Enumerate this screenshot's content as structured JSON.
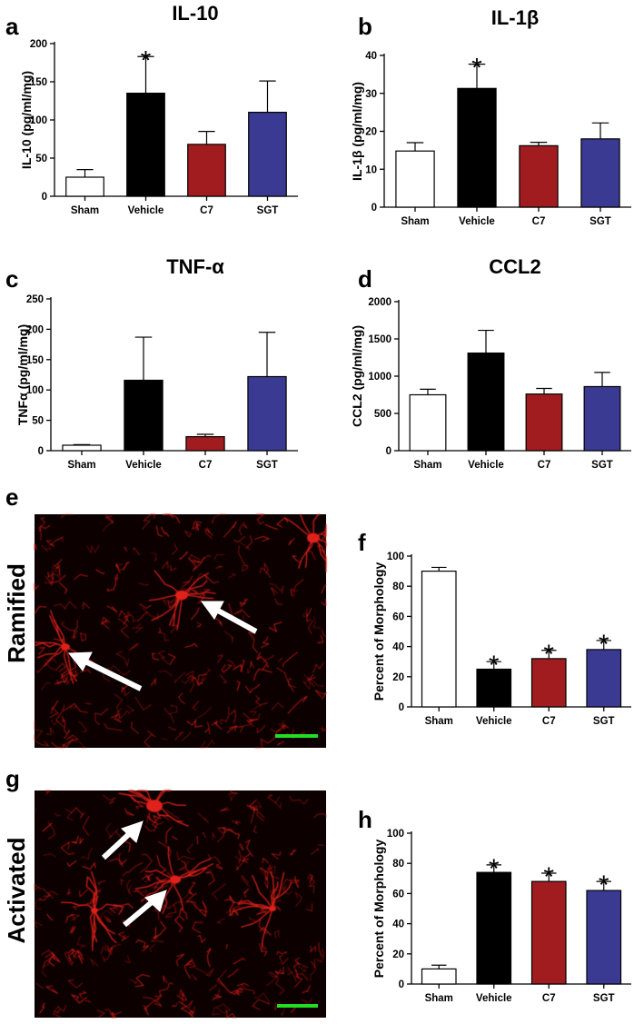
{
  "colors": {
    "sham": "#ffffff",
    "vehicle": "#000000",
    "c7": "#a11c1f",
    "sgt": "#3a3a92",
    "scale_bar": "#22dd22",
    "micrograph_bg": "#0c0000",
    "cells": "#e0201a"
  },
  "images": {
    "e": {
      "letter": "e",
      "row_label": "Ramified"
    },
    "g": {
      "letter": "g",
      "row_label": "Activated"
    }
  },
  "chart_data": [
    {
      "id": "a",
      "letter": "a",
      "type": "bar",
      "title": "IL-10",
      "ylabel": "IL-10 (pg/ml/mg)",
      "xlabel": "",
      "categories": [
        "Sham",
        "Vehicle",
        "C7",
        "SGT"
      ],
      "values": [
        25,
        135,
        68,
        110
      ],
      "errors": [
        10,
        48,
        17,
        41
      ],
      "significant": [
        false,
        true,
        false,
        false
      ],
      "ylim": [
        0,
        200
      ],
      "yticks": [
        0,
        50,
        100,
        150,
        200
      ],
      "grid": false
    },
    {
      "id": "b",
      "letter": "b",
      "type": "bar",
      "title": "IL-1β",
      "ylabel": "IL-1β (pg/ml/mg)",
      "xlabel": "",
      "categories": [
        "Sham",
        "Vehicle",
        "C7",
        "SGT"
      ],
      "values": [
        14.8,
        31.3,
        16.2,
        18
      ],
      "errors": [
        2.2,
        6.4,
        0.9,
        4.2
      ],
      "significant": [
        false,
        true,
        false,
        false
      ],
      "ylim": [
        0,
        40
      ],
      "yticks": [
        0,
        10,
        20,
        30,
        40
      ],
      "grid": false
    },
    {
      "id": "c",
      "letter": "c",
      "type": "bar",
      "title": "TNF-α",
      "ylabel": "TNFα (pg/ml/mg)",
      "xlabel": "",
      "categories": [
        "Sham",
        "Vehicle",
        "C7",
        "SGT"
      ],
      "values": [
        9,
        116,
        23,
        122
      ],
      "errors": [
        1,
        71,
        4,
        73
      ],
      "significant": [
        false,
        false,
        false,
        false
      ],
      "ylim": [
        0,
        250
      ],
      "yticks": [
        0,
        50,
        100,
        150,
        200,
        250
      ],
      "grid": false
    },
    {
      "id": "d",
      "letter": "d",
      "type": "bar",
      "title": "CCL2",
      "ylabel": "CCL2 (pg/ml/mg)",
      "xlabel": "",
      "categories": [
        "Sham",
        "Vehicle",
        "C7",
        "SGT"
      ],
      "values": [
        750,
        1310,
        760,
        860
      ],
      "errors": [
        75,
        305,
        75,
        190
      ],
      "significant": [
        false,
        false,
        false,
        false
      ],
      "ylim": [
        0,
        2000
      ],
      "yticks": [
        0,
        500,
        1000,
        1500,
        2000
      ],
      "grid": false
    },
    {
      "id": "f",
      "letter": "f",
      "type": "bar",
      "title": "",
      "ylabel": "Percent of Morphology",
      "xlabel": "",
      "categories": [
        "Sham",
        "Vehicle",
        "C7",
        "SGT"
      ],
      "values": [
        90,
        25,
        32,
        38
      ],
      "errors": [
        2.5,
        5,
        5.5,
        6
      ],
      "significant": [
        false,
        true,
        true,
        true
      ],
      "ylim": [
        0,
        100
      ],
      "yticks": [
        0,
        20,
        40,
        60,
        80,
        100
      ],
      "grid": false
    },
    {
      "id": "h",
      "letter": "h",
      "type": "bar",
      "title": "",
      "ylabel": "Percent of Morphology",
      "xlabel": "",
      "categories": [
        "Sham",
        "Vehicle",
        "C7",
        "SGT"
      ],
      "values": [
        10,
        74,
        68,
        62
      ],
      "errors": [
        2.5,
        5,
        5.5,
        6
      ],
      "significant": [
        false,
        true,
        true,
        true
      ],
      "ylim": [
        0,
        100
      ],
      "yticks": [
        0,
        20,
        40,
        60,
        80,
        100
      ],
      "grid": false
    }
  ]
}
